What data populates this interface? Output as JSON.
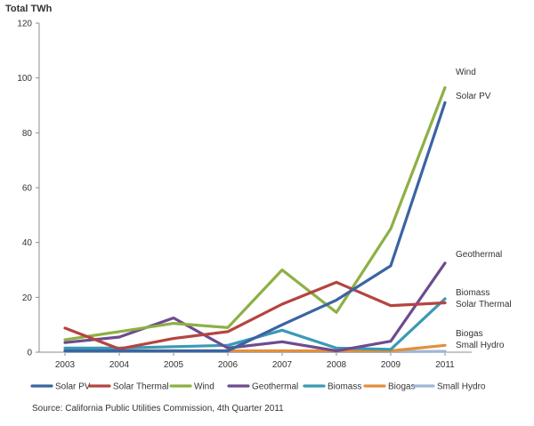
{
  "chart_data": {
    "type": "line",
    "title": "",
    "ylabel": "Total TWh",
    "xlabel": "",
    "x": [
      "2003",
      "2004",
      "2005",
      "2006",
      "2007",
      "2008",
      "2009",
      "2011"
    ],
    "ylim": [
      0,
      120
    ],
    "yticks": [
      0,
      20,
      40,
      60,
      80,
      100,
      120
    ],
    "grid": false,
    "legend_position": "bottom",
    "series": [
      {
        "name": "Solar PV",
        "color": "#3A64A3",
        "values": [
          0.5,
          0.5,
          0.5,
          0.5,
          10,
          19,
          31.5,
          91
        ]
      },
      {
        "name": "Solar Thermal",
        "color": "#B5443F",
        "values": [
          8.8,
          1.2,
          5,
          7.5,
          17.5,
          25.5,
          17,
          18
        ]
      },
      {
        "name": "Wind",
        "color": "#8DB043",
        "values": [
          4.5,
          7.5,
          10.5,
          9,
          30,
          14.5,
          45,
          96.5
        ]
      },
      {
        "name": "Geothermal",
        "color": "#6D4C8F",
        "values": [
          3.5,
          5.5,
          12.5,
          1.5,
          3.8,
          0.5,
          4,
          32.5
        ]
      },
      {
        "name": "Biomass",
        "color": "#3A9AB4",
        "values": [
          1.5,
          1.5,
          2,
          2.5,
          8,
          1.5,
          1,
          19.5
        ]
      },
      {
        "name": "Biogas",
        "color": "#E28F3A",
        "values": [
          0.5,
          0.5,
          0.5,
          0.5,
          0.5,
          0.5,
          0.5,
          2.5
        ]
      },
      {
        "name": "Small Hydro",
        "color": "#9FB6D6",
        "values": [
          0.2,
          0.2,
          0.2,
          0.2,
          0.2,
          0.2,
          0.2,
          0.3
        ]
      }
    ],
    "annotations": {
      "wind": "Wind",
      "solar_pv": "Solar PV",
      "geothermal": "Geothermal",
      "biomass": "Biomass",
      "solar_thermal": "Solar Thermal",
      "biogas": "Biogas",
      "small_hydro": "Small Hydro"
    },
    "source": "Source: California Public Utilities Commission, 4th Quarter 2011"
  }
}
